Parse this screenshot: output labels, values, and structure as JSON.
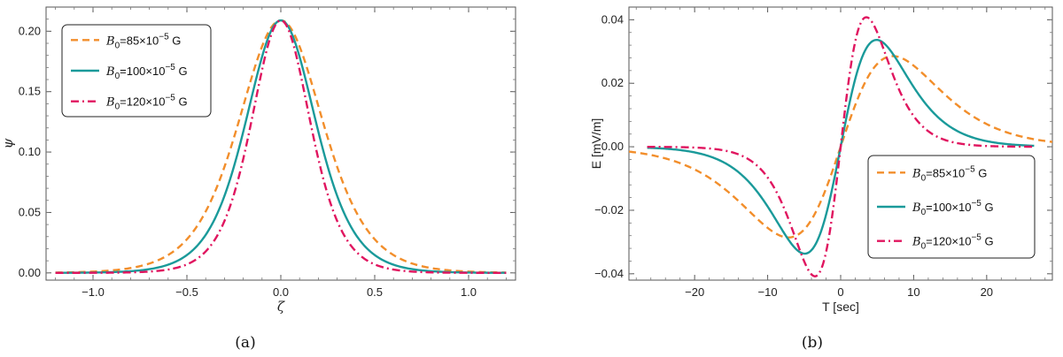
{
  "chart_data": [
    {
      "type": "line",
      "panel": "a",
      "caption": "(a)",
      "xlabel": "ζ",
      "ylabel": "ψ",
      "xlim": [
        -1.25,
        1.25
      ],
      "ylim": [
        -0.006,
        0.22
      ],
      "xticks": [
        -1.0,
        -0.5,
        0.0,
        0.5,
        1.0
      ],
      "xtick_labels": [
        "−1.0",
        "−0.5",
        "0.0",
        "0.5",
        "1.0"
      ],
      "yticks": [
        0.0,
        0.05,
        0.1,
        0.15,
        0.2
      ],
      "ytick_labels": [
        "0.00",
        "0.05",
        "0.10",
        "0.15",
        "0.20"
      ],
      "legend_position": "top-left",
      "series": [
        {
          "name": "B0=85×10−5 G",
          "legend_pre": "B",
          "legend_sub": "0",
          "legend_mid": "=85×10",
          "legend_sup": "−5",
          "legend_post": " G",
          "color": "#f28e2b",
          "dash": "8,5",
          "amplitude": 0.209,
          "width": 0.3
        },
        {
          "name": "B0=100×10−5 G",
          "legend_pre": "B",
          "legend_sub": "0",
          "legend_mid": "=100×10",
          "legend_sup": "−5",
          "legend_post": " G",
          "color": "#1a9a9a",
          "dash": "",
          "amplitude": 0.209,
          "width": 0.25
        },
        {
          "name": "B0=120×10−5 G",
          "legend_pre": "B",
          "legend_sub": "0",
          "legend_mid": "=120×10",
          "legend_sup": "−5",
          "legend_post": " G",
          "color": "#e0155f",
          "dash": "9,4,2,4",
          "amplitude": 0.209,
          "width": 0.21
        }
      ]
    },
    {
      "type": "line",
      "panel": "b",
      "caption": "(b)",
      "xlabel": "T [sec]",
      "ylabel": "E [mV/m]",
      "xlim": [
        -29,
        29
      ],
      "ylim": [
        -0.042,
        0.044
      ],
      "xticks": [
        -20,
        -10,
        0,
        10,
        20
      ],
      "xtick_labels": [
        "−20",
        "−10",
        "0",
        "10",
        "20"
      ],
      "yticks": [
        -0.04,
        -0.02,
        0.0,
        0.02,
        0.04
      ],
      "ytick_labels": [
        "−0.04",
        "−0.02",
        "0.00",
        "0.02",
        "0.04"
      ],
      "legend_position": "bottom-right",
      "series": [
        {
          "name": "B0=85×10−5 G",
          "legend_pre": "B",
          "legend_sub": "0",
          "legend_mid": "=85×10",
          "legend_sup": "−5",
          "legend_post": " G",
          "color": "#f28e2b",
          "dash": "8,5",
          "peak_value": 0.028,
          "peak_time": 6.1,
          "t_range": [
            -29,
            29
          ]
        },
        {
          "name": "B0=100×10−5 G",
          "legend_pre": "B",
          "legend_sub": "0",
          "legend_mid": "=100×10",
          "legend_sup": "−5",
          "legend_post": " G",
          "color": "#1a9a9a",
          "dash": "",
          "peak_value": 0.033,
          "peak_time": 4.2,
          "t_range": [
            -26.5,
            26.5
          ]
        },
        {
          "name": "B0=120×10−5 G",
          "legend_pre": "B",
          "legend_sub": "0",
          "legend_mid": "=120×10",
          "legend_sup": "−5",
          "legend_post": " G",
          "color": "#e0155f",
          "dash": "9,4,2,4",
          "peak_value": 0.04,
          "peak_time": 3.0,
          "t_range": [
            -26.5,
            26.5
          ]
        }
      ]
    }
  ]
}
